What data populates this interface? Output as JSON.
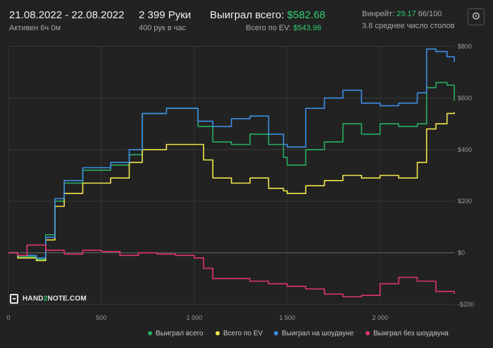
{
  "header": {
    "date_range": "21.08.2022 - 22.08.2022",
    "active": "Активен 6ч 0м",
    "hands": "2 399 Руки",
    "hands_rate": "400 рук в час",
    "won_total_label": "Выиграл всего:",
    "won_total_value": "$582.68",
    "ev_label": "Всего по EV:",
    "ev_value": "$543.98",
    "winrate_label": "Винрейт:",
    "winrate_value": "29.17",
    "winrate_extra": "66/100",
    "avg_tables": "3.8 среднее число столов"
  },
  "logo": {
    "pre": "HAND",
    "mid": "2",
    "post": "NOTE.COM"
  },
  "settings_icon": "gear-icon",
  "colors": {
    "background": "#222222",
    "won_total": "#27ae60",
    "ev": "#f1e74a",
    "showdown": "#3d8fe8",
    "no_showdown": "#e0356e"
  },
  "chart_data": {
    "type": "line",
    "xlim": [
      0,
      2399
    ],
    "ylim": [
      -200,
      800
    ],
    "x_ticks": [
      0,
      500,
      1000,
      1500,
      2000
    ],
    "x_tick_labels": [
      "0",
      "500",
      "1 000",
      "1 500",
      "2 000"
    ],
    "y_ticks": [
      800,
      600,
      400,
      200,
      0,
      -200
    ],
    "y_tick_labels": [
      "$800",
      "$600",
      "$400",
      "$200",
      "$0",
      "-$200"
    ],
    "grid": true,
    "legend": "bottom",
    "series": [
      {
        "name": "Выиграл всего",
        "color": "#27ae60",
        "points": [
          [
            0,
            0
          ],
          [
            50,
            -15
          ],
          [
            150,
            -25
          ],
          [
            200,
            70
          ],
          [
            250,
            200
          ],
          [
            300,
            270
          ],
          [
            400,
            320
          ],
          [
            550,
            340
          ],
          [
            650,
            380
          ],
          [
            720,
            540
          ],
          [
            850,
            560
          ],
          [
            980,
            560
          ],
          [
            1020,
            490
          ],
          [
            1100,
            430
          ],
          [
            1200,
            420
          ],
          [
            1300,
            460
          ],
          [
            1400,
            420
          ],
          [
            1480,
            370
          ],
          [
            1500,
            340
          ],
          [
            1600,
            400
          ],
          [
            1700,
            430
          ],
          [
            1800,
            500
          ],
          [
            1900,
            460
          ],
          [
            2000,
            500
          ],
          [
            2100,
            490
          ],
          [
            2200,
            500
          ],
          [
            2250,
            640
          ],
          [
            2300,
            660
          ],
          [
            2360,
            650
          ],
          [
            2399,
            590
          ]
        ]
      },
      {
        "name": "Всего по EV",
        "color": "#f1e74a",
        "points": [
          [
            0,
            0
          ],
          [
            50,
            -20
          ],
          [
            150,
            -30
          ],
          [
            200,
            50
          ],
          [
            250,
            180
          ],
          [
            300,
            230
          ],
          [
            400,
            270
          ],
          [
            550,
            290
          ],
          [
            650,
            350
          ],
          [
            720,
            400
          ],
          [
            850,
            420
          ],
          [
            980,
            420
          ],
          [
            1050,
            360
          ],
          [
            1100,
            290
          ],
          [
            1200,
            270
          ],
          [
            1300,
            290
          ],
          [
            1400,
            250
          ],
          [
            1480,
            240
          ],
          [
            1500,
            230
          ],
          [
            1600,
            260
          ],
          [
            1700,
            280
          ],
          [
            1800,
            300
          ],
          [
            1900,
            290
          ],
          [
            2000,
            300
          ],
          [
            2100,
            290
          ],
          [
            2200,
            350
          ],
          [
            2250,
            480
          ],
          [
            2300,
            500
          ],
          [
            2360,
            540
          ],
          [
            2399,
            545
          ]
        ]
      },
      {
        "name": "Выиграл на шоудауне",
        "color": "#3d8fe8",
        "points": [
          [
            0,
            0
          ],
          [
            50,
            -10
          ],
          [
            150,
            -20
          ],
          [
            200,
            60
          ],
          [
            250,
            210
          ],
          [
            300,
            280
          ],
          [
            400,
            330
          ],
          [
            550,
            350
          ],
          [
            650,
            400
          ],
          [
            720,
            540
          ],
          [
            850,
            560
          ],
          [
            980,
            560
          ],
          [
            1020,
            510
          ],
          [
            1100,
            490
          ],
          [
            1200,
            520
          ],
          [
            1300,
            530
          ],
          [
            1400,
            460
          ],
          [
            1480,
            420
          ],
          [
            1500,
            410
          ],
          [
            1600,
            560
          ],
          [
            1700,
            600
          ],
          [
            1800,
            630
          ],
          [
            1900,
            580
          ],
          [
            2000,
            570
          ],
          [
            2100,
            580
          ],
          [
            2200,
            620
          ],
          [
            2250,
            790
          ],
          [
            2300,
            780
          ],
          [
            2360,
            760
          ],
          [
            2399,
            740
          ]
        ]
      },
      {
        "name": "Выиграл без шоудауна",
        "color": "#e0356e",
        "points": [
          [
            0,
            0
          ],
          [
            50,
            -10
          ],
          [
            100,
            30
          ],
          [
            200,
            10
          ],
          [
            300,
            -5
          ],
          [
            400,
            10
          ],
          [
            500,
            5
          ],
          [
            600,
            -10
          ],
          [
            700,
            0
          ],
          [
            800,
            -5
          ],
          [
            900,
            -10
          ],
          [
            1000,
            -20
          ],
          [
            1050,
            -60
          ],
          [
            1100,
            -100
          ],
          [
            1200,
            -100
          ],
          [
            1300,
            -110
          ],
          [
            1400,
            -120
          ],
          [
            1500,
            -130
          ],
          [
            1600,
            -140
          ],
          [
            1700,
            -160
          ],
          [
            1800,
            -170
          ],
          [
            1900,
            -165
          ],
          [
            2000,
            -120
          ],
          [
            2100,
            -95
          ],
          [
            2200,
            -110
          ],
          [
            2300,
            -150
          ],
          [
            2399,
            -160
          ]
        ]
      }
    ]
  }
}
